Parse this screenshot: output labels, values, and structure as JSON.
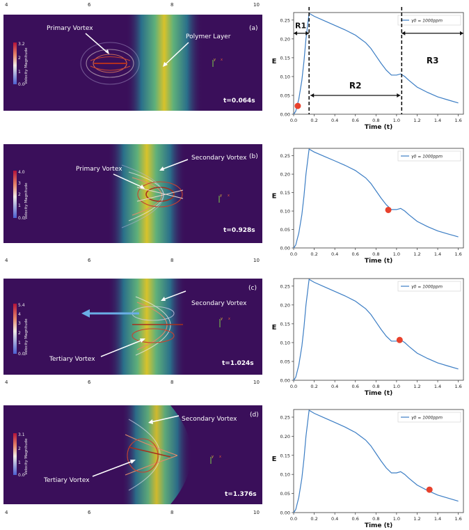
{
  "figure": {
    "panels": [
      {
        "id": "a",
        "label": "(a)",
        "time": "t=0.064s",
        "colorbar": {
          "title": "Velocity Magnitude",
          "max": "3.2",
          "ticks": [
            "3.2",
            "2",
            "1",
            "0.0"
          ]
        },
        "annotations": [
          "Primary Vortex",
          "Polymer Layer"
        ],
        "x_ticks": [
          "4",
          "6",
          "8",
          "10"
        ]
      },
      {
        "id": "b",
        "label": "(b)",
        "time": "t=0.928s",
        "colorbar": {
          "title": "Velocity Magnitude",
          "max": "4.0",
          "ticks": [
            "4.0",
            "3",
            "2",
            "1",
            "0.0"
          ]
        },
        "annotations": [
          "Primary Vortex",
          "Secondary Vortex"
        ],
        "x_ticks": [
          "4",
          "6",
          "8",
          "10"
        ]
      },
      {
        "id": "c",
        "label": "(c)",
        "time": "t=1.024s",
        "colorbar": {
          "title": "Velocity Magnitude",
          "max": "5.4",
          "ticks": [
            "5.4",
            "4",
            "3",
            "2",
            "1",
            "0.0"
          ]
        },
        "annotations": [
          "Secondary Vortex",
          "Tertiary Vortex"
        ],
        "x_ticks": [
          "4",
          "6",
          "8",
          "10"
        ]
      },
      {
        "id": "d",
        "label": "(d)",
        "time": "t=1.376s",
        "colorbar": {
          "title": "Velocity Magnitude",
          "max": "3.1",
          "ticks": [
            "3.1",
            "2",
            "1",
            "0.0"
          ]
        },
        "annotations": [
          "Secondary Vortex",
          "Tertiary Vortex"
        ],
        "x_ticks": [
          "4",
          "6",
          "8",
          "10"
        ]
      }
    ],
    "regions": {
      "r1": "R1",
      "r2": "R2",
      "r3": "R3"
    }
  },
  "chart_data": [
    {
      "type": "line",
      "xlabel": "Time (t)",
      "ylabel": "E",
      "legend": "γ0 = 1000ppm",
      "xlim": [
        0,
        1.65
      ],
      "ylim": [
        0,
        0.27
      ],
      "x_ticks": [
        "0.0",
        "0.2",
        "0.4",
        "0.6",
        "0.8",
        "1.0",
        "1.2",
        "1.4",
        "1.6"
      ],
      "y_ticks": [
        "0.00",
        "0.05",
        "0.10",
        "0.15",
        "0.20",
        "0.25"
      ],
      "series": [
        {
          "name": "γ0 = 1000ppm",
          "x": [
            0,
            0.02,
            0.05,
            0.08,
            0.1,
            0.12,
            0.15,
            0.2,
            0.3,
            0.4,
            0.5,
            0.6,
            0.65,
            0.7,
            0.75,
            0.8,
            0.85,
            0.9,
            0.95,
            1.0,
            1.04,
            1.08,
            1.12,
            1.2,
            1.3,
            1.4,
            1.5,
            1.6
          ],
          "y": [
            0.0,
            0.008,
            0.04,
            0.09,
            0.14,
            0.2,
            0.268,
            0.26,
            0.248,
            0.236,
            0.224,
            0.21,
            0.2,
            0.19,
            0.175,
            0.155,
            0.135,
            0.117,
            0.104,
            0.104,
            0.107,
            0.1,
            0.09,
            0.072,
            0.058,
            0.046,
            0.038,
            0.03
          ]
        }
      ],
      "marker": {
        "x": 0.04,
        "y": 0.022
      },
      "region_lines": [
        0.15,
        1.05
      ]
    },
    {
      "type": "line",
      "xlabel": "Time (t)",
      "ylabel": "E",
      "legend": "γ0 = 1000ppm",
      "xlim": [
        0,
        1.65
      ],
      "ylim": [
        0,
        0.27
      ],
      "x_ticks": [
        "0.0",
        "0.2",
        "0.4",
        "0.6",
        "0.8",
        "1.0",
        "1.2",
        "1.4",
        "1.6"
      ],
      "y_ticks": [
        "0.00",
        "0.05",
        "0.10",
        "0.15",
        "0.20",
        "0.25"
      ],
      "series": [
        {
          "name": "γ0 = 1000ppm",
          "x": [
            0,
            0.02,
            0.05,
            0.08,
            0.1,
            0.12,
            0.15,
            0.2,
            0.3,
            0.4,
            0.5,
            0.6,
            0.65,
            0.7,
            0.75,
            0.8,
            0.85,
            0.9,
            0.95,
            1.0,
            1.04,
            1.08,
            1.12,
            1.2,
            1.3,
            1.4,
            1.5,
            1.6
          ],
          "y": [
            0.0,
            0.008,
            0.04,
            0.09,
            0.14,
            0.2,
            0.268,
            0.26,
            0.248,
            0.236,
            0.224,
            0.21,
            0.2,
            0.19,
            0.175,
            0.155,
            0.135,
            0.117,
            0.104,
            0.104,
            0.107,
            0.1,
            0.09,
            0.072,
            0.058,
            0.046,
            0.038,
            0.03
          ]
        }
      ],
      "marker": {
        "x": 0.92,
        "y": 0.103
      }
    },
    {
      "type": "line",
      "xlabel": "Time (t)",
      "ylabel": "E",
      "legend": "γ0 = 1000ppm",
      "xlim": [
        0,
        1.65
      ],
      "ylim": [
        0,
        0.27
      ],
      "x_ticks": [
        "0.0",
        "0.2",
        "0.4",
        "0.6",
        "0.8",
        "1.0",
        "1.2",
        "1.4",
        "1.6"
      ],
      "y_ticks": [
        "0.00",
        "0.05",
        "0.10",
        "0.15",
        "0.20",
        "0.25"
      ],
      "series": [
        {
          "name": "γ0 = 1000ppm",
          "x": [
            0,
            0.02,
            0.05,
            0.08,
            0.1,
            0.12,
            0.15,
            0.2,
            0.3,
            0.4,
            0.5,
            0.6,
            0.65,
            0.7,
            0.75,
            0.8,
            0.85,
            0.9,
            0.95,
            1.0,
            1.04,
            1.08,
            1.12,
            1.2,
            1.3,
            1.4,
            1.5,
            1.6
          ],
          "y": [
            0.0,
            0.008,
            0.04,
            0.09,
            0.14,
            0.2,
            0.268,
            0.26,
            0.248,
            0.236,
            0.224,
            0.21,
            0.2,
            0.19,
            0.175,
            0.155,
            0.135,
            0.117,
            0.104,
            0.104,
            0.107,
            0.1,
            0.09,
            0.072,
            0.058,
            0.046,
            0.038,
            0.03
          ]
        }
      ],
      "marker": {
        "x": 1.03,
        "y": 0.107
      }
    },
    {
      "type": "line",
      "xlabel": "Time (t)",
      "ylabel": "E",
      "legend": "γ0 = 1000ppm",
      "xlim": [
        0,
        1.65
      ],
      "ylim": [
        0,
        0.27
      ],
      "x_ticks": [
        "0.0",
        "0.2",
        "0.4",
        "0.6",
        "0.8",
        "1.0",
        "1.2",
        "1.4",
        "1.6"
      ],
      "y_ticks": [
        "0.00",
        "0.05",
        "0.10",
        "0.15",
        "0.20",
        "0.25"
      ],
      "series": [
        {
          "name": "γ0 = 1000ppm",
          "x": [
            0,
            0.02,
            0.05,
            0.08,
            0.1,
            0.12,
            0.15,
            0.2,
            0.3,
            0.4,
            0.5,
            0.6,
            0.65,
            0.7,
            0.75,
            0.8,
            0.85,
            0.9,
            0.95,
            1.0,
            1.04,
            1.08,
            1.12,
            1.2,
            1.3,
            1.4,
            1.5,
            1.6
          ],
          "y": [
            0.0,
            0.008,
            0.04,
            0.09,
            0.14,
            0.2,
            0.268,
            0.26,
            0.248,
            0.236,
            0.224,
            0.21,
            0.2,
            0.19,
            0.175,
            0.155,
            0.135,
            0.117,
            0.104,
            0.104,
            0.107,
            0.1,
            0.09,
            0.072,
            0.058,
            0.046,
            0.038,
            0.03
          ]
        }
      ],
      "marker": {
        "x": 1.32,
        "y": 0.06
      }
    }
  ],
  "colors": {
    "background": "#3a0f5a",
    "band": "#d9c22a",
    "line": "#3b7dc4",
    "marker": "#e8412c",
    "arrow": "#6aaee6"
  }
}
